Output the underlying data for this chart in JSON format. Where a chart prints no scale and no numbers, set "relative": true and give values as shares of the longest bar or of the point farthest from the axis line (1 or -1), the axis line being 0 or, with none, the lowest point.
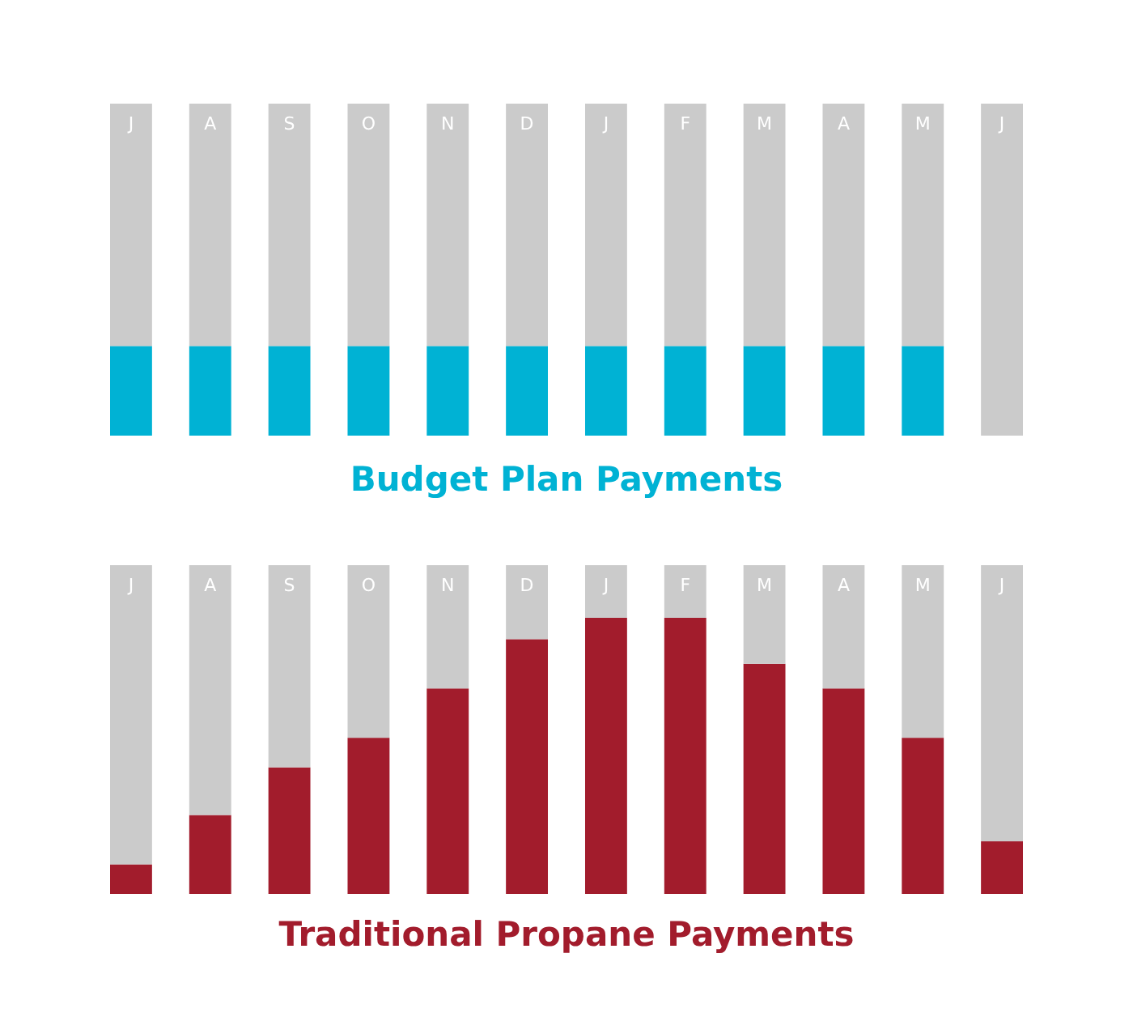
{
  "chart_data": [
    {
      "type": "bar",
      "title": "Budget Plan Payments",
      "relative": true,
      "stacked": true,
      "categories": [
        "J",
        "A",
        "S",
        "O",
        "N",
        "D",
        "J",
        "F",
        "M",
        "A",
        "M",
        "J"
      ],
      "series": [
        {
          "color": "#00b2d4",
          "values": [
            0.27,
            0.27,
            0.27,
            0.27,
            0.27,
            0.27,
            0.27,
            0.27,
            0.27,
            0.27,
            0.27,
            0
          ]
        },
        {
          "color": "#cbcbcb",
          "values": [
            0.73,
            0.73,
            0.73,
            0.73,
            0.73,
            0.73,
            0.73,
            0.73,
            0.73,
            0.73,
            0.73,
            1
          ]
        }
      ]
    },
    {
      "type": "bar",
      "title": "Traditional Propane Payments",
      "relative": true,
      "stacked": true,
      "categories": [
        "J",
        "A",
        "S",
        "O",
        "N",
        "D",
        "J",
        "F",
        "M",
        "A",
        "M",
        "J"
      ],
      "series": [
        {
          "color": "#a21c2c",
          "values": [
            0.09,
            0.24,
            0.385,
            0.475,
            0.625,
            0.775,
            0.84,
            0.84,
            0.7,
            0.625,
            0.475,
            0.16
          ]
        },
        {
          "color": "#cbcbcb",
          "values": [
            0.91,
            0.76,
            0.615,
            0.525,
            0.375,
            0.225,
            0.16,
            0.16,
            0.3,
            0.375,
            0.525,
            0.84
          ]
        }
      ]
    }
  ]
}
